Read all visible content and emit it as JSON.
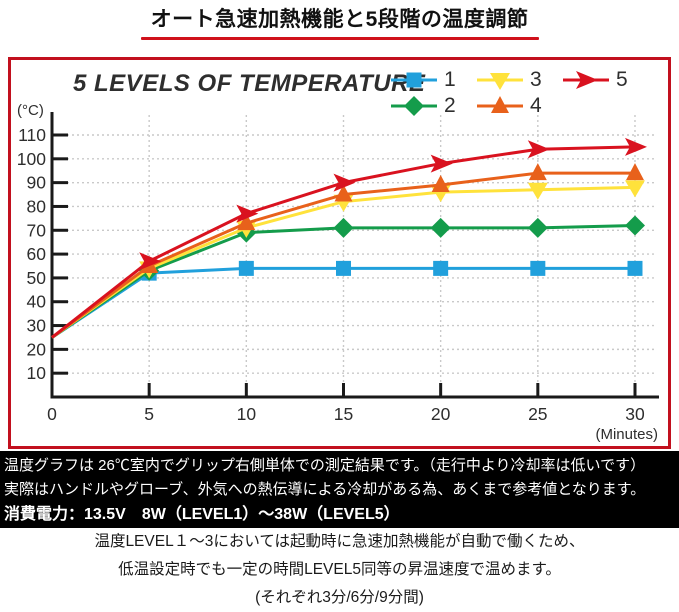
{
  "page_title": "オート急速加熱機能と5段階の温度調節",
  "colors": {
    "accent_red": "#c8101e",
    "title_underline": "#d0111b",
    "chart_border": "#c2101e",
    "grid": "#c9c9c9",
    "axis": "#1a1a1a"
  },
  "chart_data": {
    "type": "line",
    "title": "5 LEVELS OF TEMPERATURE",
    "xlabel": "(Minutes)",
    "ylabel": "(°C)",
    "x": [
      0,
      5,
      10,
      15,
      20,
      25,
      30
    ],
    "xticks": [
      0,
      5,
      10,
      15,
      20,
      25,
      30
    ],
    "yticks": [
      10,
      20,
      30,
      40,
      50,
      60,
      70,
      80,
      90,
      100,
      110
    ],
    "ylim": [
      0,
      115
    ],
    "grid": "dotted",
    "legend_position": "top-right",
    "legend_order": [
      "1",
      "3",
      "5",
      "2",
      "4"
    ],
    "series": [
      {
        "name": "1",
        "marker": "square",
        "color": "#21a0dc",
        "values": [
          25,
          52,
          54,
          54,
          54,
          54,
          54
        ]
      },
      {
        "name": "2",
        "marker": "diamond",
        "color": "#149c4b",
        "values": [
          25,
          53,
          69,
          71,
          71,
          71,
          72
        ]
      },
      {
        "name": "3",
        "marker": "triangle-down",
        "color": "#ffe23b",
        "values": [
          25,
          54,
          71,
          82,
          86,
          87,
          88
        ]
      },
      {
        "name": "4",
        "marker": "triangle-up",
        "color": "#e8611b",
        "values": [
          25,
          55,
          73,
          85,
          89,
          94,
          94
        ]
      },
      {
        "name": "5",
        "marker": "arrow-right",
        "color": "#d9121f",
        "values": [
          25,
          57,
          77,
          90,
          98,
          104,
          105
        ]
      }
    ]
  },
  "info_panel": {
    "line1": "温度グラフは 26℃室内でグリップ右側単体での測定結果です。（走行中より冷却率は低いです）",
    "line2": "実際はハンドルやグローブ、外気への熱伝導による冷却がある為、あくまで参考値となります。",
    "power_line": "消費電力：13.5V　8W（LEVEL1）～38W（LEVEL5）"
  },
  "footer": {
    "line1": "温度LEVEL１～3においては起動時に急速加熱機能が自動で働くため、",
    "line2": "低温設定時でも一定の時間LEVEL5同等の昇温速度で温めます。",
    "line3": "(それぞれ3分/6分/9分間)"
  }
}
